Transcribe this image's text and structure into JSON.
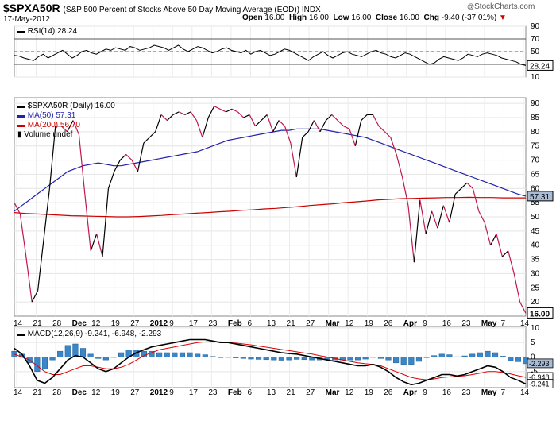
{
  "header": {
    "symbol": "$SPXA50R",
    "subtitle": "(S&P 500 Percent of Stocks Above 50 Day Moving Average (EOD)) INDX",
    "date": "17-May-2012",
    "open_label": "Open",
    "open": "16.00",
    "high_label": "High",
    "high": "16.00",
    "low_label": "Low",
    "low": "16.00",
    "close_label": "Close",
    "close": "16.00",
    "chg_label": "Chg",
    "chg": "-9.40 (-37.01%)",
    "chg_arrow": "▼",
    "logo": "StockCharts.com",
    "logo_prefix": "@"
  },
  "colors": {
    "price": "#000000",
    "ma50": "#2222aa",
    "ma200": "#cc0000",
    "down": "#c2184c",
    "rsi": "#000000",
    "macd": "#000000",
    "signal": "#dd0000",
    "histogram": "#3a86c8",
    "last_box": "#aabbd4"
  },
  "x_axis_labels": [
    "14",
    "21",
    "28",
    "Dec",
    "12",
    "19",
    "27",
    "2012",
    "9",
    "17",
    "23",
    "Feb",
    "6",
    "13",
    "21",
    "27",
    "Mar",
    "12",
    "19",
    "26",
    "Apr",
    "9",
    "16",
    "23",
    "May",
    "7",
    "14"
  ],
  "chart_data": [
    {
      "type": "line",
      "name": "rsi-panel",
      "legend": [
        {
          "name": "RSI(14)",
          "value": "28.24"
        }
      ],
      "ylim": [
        10,
        90
      ],
      "y_ticks": [
        90,
        70,
        50,
        30,
        10
      ],
      "reference_lines": [
        70,
        50,
        30
      ],
      "last_value": "28.24",
      "series": [
        {
          "name": "RSI(14)",
          "values": [
            44,
            43,
            40,
            38,
            36,
            42,
            46,
            40,
            44,
            48,
            52,
            46,
            40,
            44,
            50,
            52,
            48,
            46,
            50,
            54,
            52,
            56,
            54,
            52,
            58,
            56,
            52,
            54,
            56,
            60,
            58,
            56,
            52,
            56,
            60,
            54,
            50,
            54,
            58,
            56,
            52,
            48,
            50,
            54,
            56,
            52,
            50,
            48,
            52,
            46,
            50,
            52,
            48,
            44,
            46,
            50,
            54,
            52,
            48,
            44,
            40,
            36,
            42,
            46,
            50,
            44,
            40,
            44,
            48,
            50,
            46,
            44,
            42,
            46,
            50,
            52,
            48,
            46,
            42,
            40,
            44,
            48,
            46,
            42,
            38,
            34,
            30,
            32,
            38,
            42,
            40,
            38,
            36,
            40,
            46,
            44,
            42,
            46,
            48,
            46,
            44,
            40,
            38,
            36,
            34,
            30,
            28.24
          ]
        }
      ]
    },
    {
      "type": "line",
      "name": "price-panel",
      "legend": [
        {
          "name": "$SPXA50R (Daily)",
          "value": "16.00"
        },
        {
          "name": "MA(50)",
          "value": "57.31"
        },
        {
          "name": "MA(200)",
          "value": "56.70"
        },
        {
          "name": "Volume",
          "value": "undef"
        }
      ],
      "ylim": [
        15,
        92
      ],
      "y_ticks": [
        90,
        85,
        80,
        75,
        70,
        65,
        60,
        55,
        50,
        45,
        40,
        35,
        30,
        25,
        20
      ],
      "last_value": "16.00",
      "ma50_label": "57.31",
      "series": [
        {
          "name": "$SPXA50R (Daily)",
          "values": [
            55,
            51,
            36,
            20,
            24,
            42,
            60,
            82,
            82,
            80,
            84,
            79,
            58,
            38,
            44,
            36,
            60,
            66,
            70,
            72,
            70,
            66,
            76,
            78,
            80,
            86,
            84,
            86,
            87,
            86,
            87,
            84,
            78,
            85,
            89,
            88,
            87,
            88,
            87,
            85,
            86,
            82,
            84,
            86,
            80,
            84,
            82,
            76,
            64,
            78,
            80,
            84,
            80,
            84,
            86,
            84,
            82,
            81,
            75,
            84,
            86,
            86,
            82,
            80,
            78,
            72,
            64,
            54,
            34,
            56,
            44,
            52,
            46,
            54,
            48,
            58,
            60,
            62,
            60,
            52,
            48,
            40,
            44,
            36,
            38,
            30,
            20,
            16
          ]
        },
        {
          "name": "MA(50)",
          "values": [
            52,
            54,
            56,
            58,
            60,
            62,
            64,
            66,
            67,
            68,
            68.5,
            69,
            68.5,
            68,
            68,
            68.5,
            69,
            69.5,
            70,
            70.5,
            71,
            71.5,
            72,
            72.5,
            73,
            74,
            75,
            76,
            77,
            77.5,
            78,
            78.5,
            79,
            79.5,
            80,
            80.5,
            80.5,
            81,
            81,
            81,
            81,
            80.5,
            80,
            79.5,
            79,
            78.5,
            78,
            77,
            76,
            75,
            74,
            73,
            72,
            71,
            70,
            69,
            68,
            67,
            66,
            65,
            64,
            63,
            62,
            61,
            60,
            59,
            58,
            57.31
          ]
        },
        {
          "name": "MA(200)",
          "values": [
            51.5,
            51.2,
            51,
            50.8,
            50.6,
            50.4,
            50.3,
            50.2,
            50.1,
            50,
            50,
            50.1,
            50.3,
            50.5,
            50.8,
            51,
            51.3,
            51.5,
            51.8,
            52,
            52.3,
            52.5,
            52.8,
            53,
            53.3,
            53.6,
            54,
            54.3,
            54.6,
            55,
            55.3,
            55.6,
            56,
            56.2,
            56.4,
            56.5,
            56.6,
            56.7,
            56.8,
            56.8,
            56.9,
            56.8,
            56.8,
            56.7,
            56.7,
            56.7
          ]
        }
      ]
    },
    {
      "type": "line",
      "name": "macd-panel",
      "legend": [
        {
          "name": "MACD(12,26,9)",
          "value": "-9.241, -6.948, -2.293"
        }
      ],
      "ylim": [
        -10.5,
        10.5
      ],
      "y_ticks": [
        10,
        5,
        0,
        -5
      ],
      "last_values": [
        "-2.293",
        "-6.948",
        "-9.241"
      ],
      "series": [
        {
          "name": "MACD",
          "values": [
            3,
            1,
            -3,
            -8,
            -9,
            -7,
            -4,
            -1,
            0.5,
            0,
            -2,
            -4,
            -5,
            -4,
            -2,
            0,
            1.5,
            2.5,
            3.5,
            4,
            4.5,
            5,
            5.5,
            6,
            6,
            6,
            5.5,
            5,
            5,
            4.5,
            4,
            3.5,
            3,
            2.5,
            2,
            1.5,
            1.2,
            1,
            0.5,
            0,
            -0.5,
            -1,
            -1.5,
            -2,
            -2.5,
            -3,
            -3,
            -2.5,
            -3.5,
            -5,
            -7,
            -8.5,
            -9.5,
            -9,
            -8,
            -7,
            -6,
            -6,
            -6.5,
            -6,
            -5,
            -4,
            -3,
            -3.5,
            -5,
            -7,
            -8,
            -9.241
          ]
        },
        {
          "name": "Signal",
          "values": [
            1,
            0,
            -1,
            -3,
            -5,
            -6,
            -6,
            -5,
            -4,
            -3,
            -3,
            -3.5,
            -4,
            -4,
            -3.5,
            -2.5,
            -1,
            0.5,
            1.5,
            2.5,
            3,
            3.5,
            4,
            4.5,
            5,
            5.2,
            5.3,
            5.2,
            5,
            4.8,
            4.5,
            4.2,
            3.8,
            3.4,
            3,
            2.6,
            2.2,
            1.8,
            1.4,
            1,
            0.5,
            0,
            -0.5,
            -1,
            -1.5,
            -2,
            -2.3,
            -2.5,
            -3,
            -4,
            -5,
            -6,
            -7,
            -7.5,
            -7.8,
            -7.5,
            -7,
            -6.8,
            -6.6,
            -6.4,
            -6,
            -5.5,
            -5,
            -5,
            -5.3,
            -5.8,
            -6.4,
            -6.948
          ]
        }
      ]
    }
  ]
}
